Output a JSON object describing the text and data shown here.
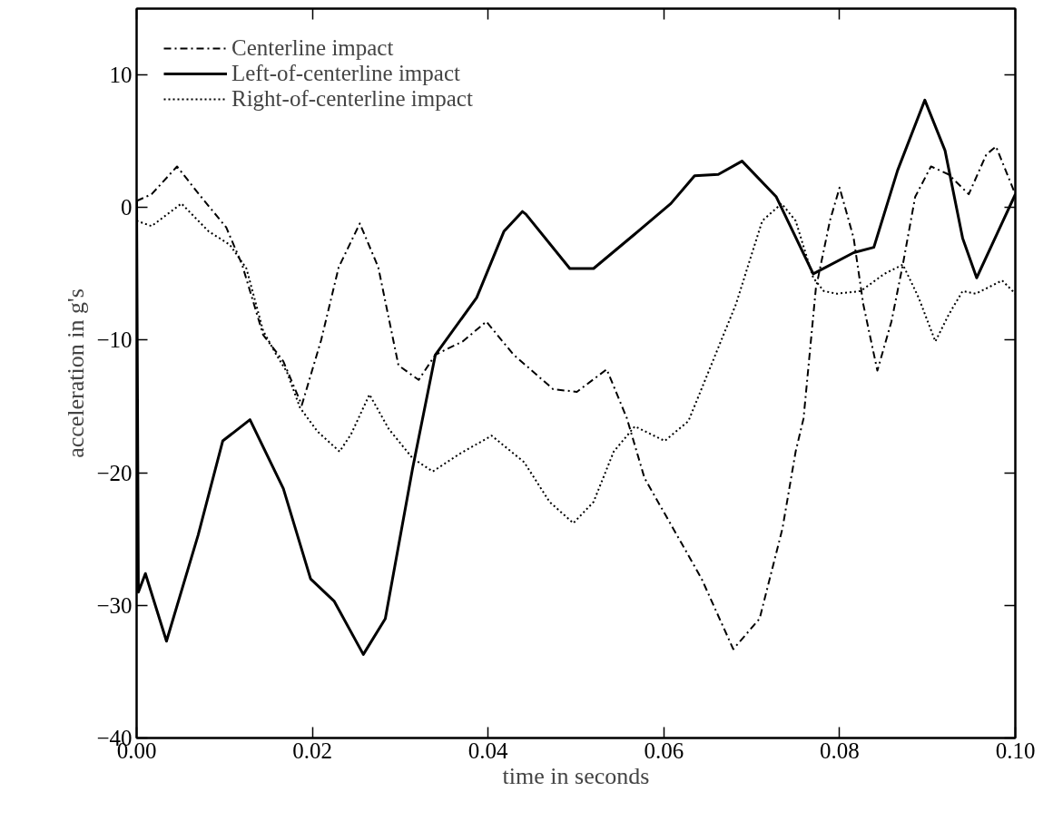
{
  "chart_data": {
    "type": "line",
    "xlabel": "time in seconds",
    "ylabel": "acceleration in g's",
    "xlim": [
      0,
      0.1
    ],
    "ylim": [
      -40,
      15
    ],
    "xticks": [
      {
        "value": 0,
        "label": "0.00"
      },
      {
        "value": 0.02,
        "label": "0.02"
      },
      {
        "value": 0.04,
        "label": "0.04"
      },
      {
        "value": 0.06,
        "label": "0.06"
      },
      {
        "value": 0.08,
        "label": "0.08"
      },
      {
        "value": 0.1,
        "label": "0.10"
      }
    ],
    "yticks": [
      -40,
      -30,
      -20,
      -10,
      0,
      10
    ],
    "grid": false,
    "legend": "top left",
    "marker": "none",
    "series": [
      {
        "name": "Centerline impact",
        "color": "#000000",
        "line_style": "dashdot",
        "x": [
          0,
          0.0017,
          0.0046,
          0.0071,
          0.0102,
          0.012,
          0.0144,
          0.0167,
          0.0188,
          0.021,
          0.023,
          0.0254,
          0.0275,
          0.0298,
          0.0321,
          0.034,
          0.0371,
          0.0398,
          0.0429,
          0.0443,
          0.0474,
          0.0501,
          0.0535,
          0.0558,
          0.0578,
          0.062,
          0.0643,
          0.0679,
          0.0709,
          0.0735,
          0.075,
          0.0759,
          0.0773,
          0.0789,
          0.08,
          0.0816,
          0.0827,
          0.0843,
          0.0859,
          0.0872,
          0.0886,
          0.0904,
          0.0924,
          0.0947,
          0.0967,
          0.0978,
          0.1
        ],
        "values": [
          0.5,
          1,
          3.1,
          1,
          -1.5,
          -4.3,
          -9.6,
          -11.6,
          -14.9,
          -10,
          -4.5,
          -1.2,
          -4.5,
          -11.9,
          -13,
          -11.1,
          -10.1,
          -8.6,
          -11.1,
          -11.9,
          -13.7,
          -13.9,
          -12.2,
          -15.9,
          -20.4,
          -25.3,
          -28,
          -33.3,
          -31,
          -24.2,
          -18.4,
          -15.9,
          -6.1,
          -1,
          1.5,
          -2.3,
          -7.3,
          -12.3,
          -8.6,
          -4.3,
          0.8,
          3.1,
          2.5,
          1,
          4,
          4.6,
          1
        ]
      },
      {
        "name": "Left-of-centerline impact",
        "color": "#000000",
        "line_style": "solid",
        "x": [
          0,
          0.0002,
          0.001,
          0.0034,
          0.007,
          0.0098,
          0.0129,
          0.0167,
          0.0198,
          0.0225,
          0.0258,
          0.0283,
          0.0314,
          0.034,
          0.0387,
          0.0418,
          0.0439,
          0.0443,
          0.0493,
          0.052,
          0.0567,
          0.0608,
          0.0635,
          0.0662,
          0.0689,
          0.0728,
          0.077,
          0.0816,
          0.0839,
          0.0866,
          0.0897,
          0.092,
          0.094,
          0.0956,
          0.1
        ],
        "values": [
          0.5,
          -29,
          -27.6,
          -32.7,
          -24.7,
          -17.6,
          -16,
          -21.2,
          -28,
          -29.7,
          -33.7,
          -31,
          -19.7,
          -11.1,
          -6.8,
          -1.8,
          -0.3,
          -0.5,
          -4.6,
          -4.6,
          -2,
          0.3,
          2.4,
          2.5,
          3.5,
          0.8,
          -5,
          -3.4,
          -3,
          2.8,
          8.1,
          4.3,
          -2.3,
          -5.3,
          1
        ]
      },
      {
        "name": "Right-of-centerline impact",
        "color": "#000000",
        "line_style": "dotted",
        "x": [
          0,
          0.0017,
          0.0051,
          0.0082,
          0.0106,
          0.0125,
          0.0144,
          0.0159,
          0.0171,
          0.0186,
          0.0206,
          0.0231,
          0.0244,
          0.0265,
          0.0287,
          0.0314,
          0.0337,
          0.0367,
          0.0404,
          0.0441,
          0.047,
          0.0497,
          0.052,
          0.0543,
          0.0567,
          0.0601,
          0.0628,
          0.0682,
          0.0712,
          0.0734,
          0.075,
          0.077,
          0.0782,
          0.0797,
          0.0824,
          0.0851,
          0.0872,
          0.089,
          0.0909,
          0.0924,
          0.094,
          0.0955,
          0.0985,
          0.1
        ],
        "values": [
          -1,
          -1.4,
          0.3,
          -1.8,
          -2.8,
          -4.6,
          -9.3,
          -11.1,
          -12.4,
          -15.1,
          -16.9,
          -18.4,
          -17.1,
          -14.1,
          -16.7,
          -18.9,
          -19.9,
          -18.6,
          -17.2,
          -19.2,
          -22.2,
          -23.8,
          -22.2,
          -18.4,
          -16.5,
          -17.6,
          -16.1,
          -7.3,
          -1,
          0.3,
          -1,
          -5.3,
          -6.3,
          -6.5,
          -6.3,
          -5,
          -4.3,
          -6.8,
          -10.1,
          -8.1,
          -6.3,
          -6.5,
          -5.5,
          -6.5
        ]
      }
    ]
  }
}
